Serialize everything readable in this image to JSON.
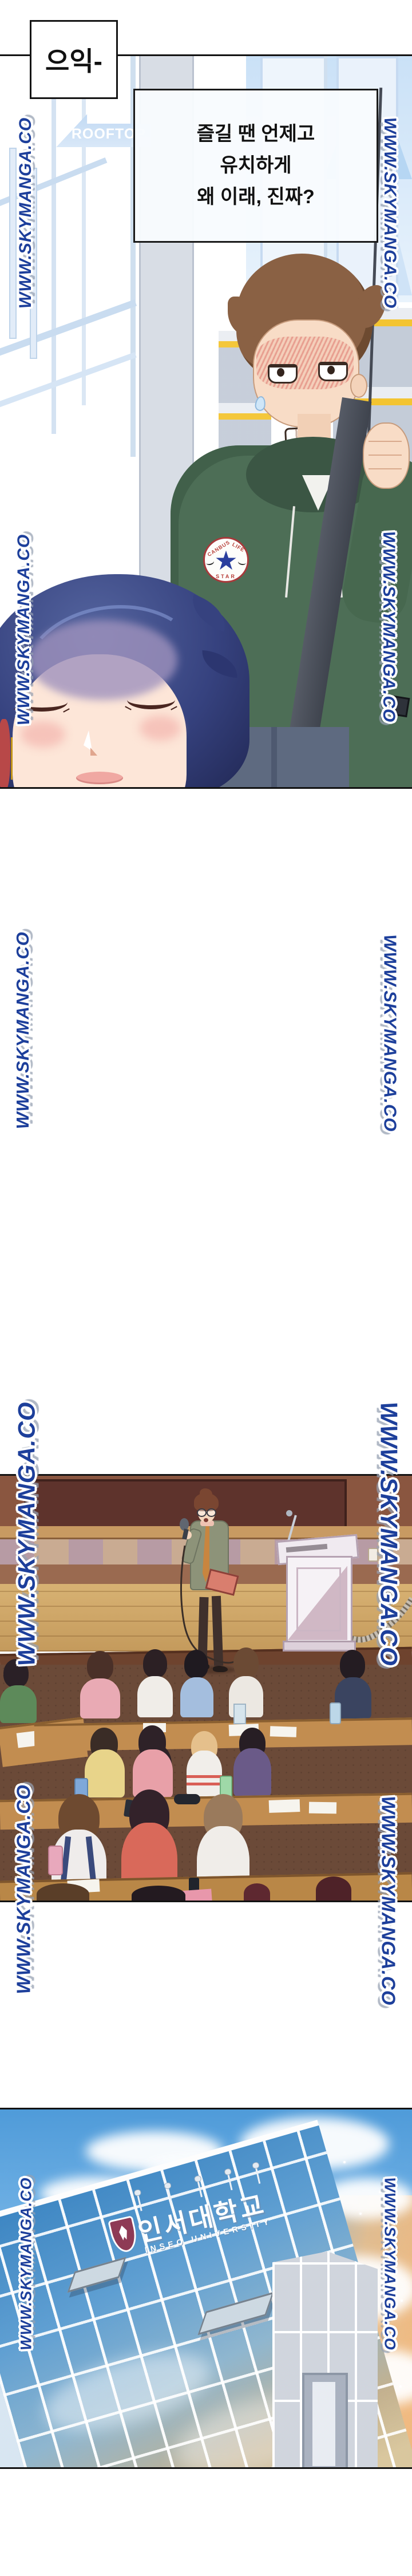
{
  "watermark": {
    "text": "WWW.SKYMANGA.CO",
    "color": "#1d3f9b"
  },
  "panel1": {
    "sfx": "으익-",
    "speech_lines": [
      "즐길 땐 언제고",
      "유치하게",
      "왜 이래, 진짜?"
    ],
    "rooftop_label": "ROOFTOP",
    "badge": {
      "arc_top_left": "CANBUS",
      "arc_top_right": "LIFE",
      "arc_bottom": "STAR",
      "star": "★"
    }
  },
  "panel3": {
    "sign_kr": "인서대학교",
    "sign_en": "INSEO UNIVERSITY"
  },
  "colors": {
    "watermark_blue": "#1d3f9b",
    "hoodie_green": "#4d6e56",
    "sign_shield": "#8e3a55"
  }
}
